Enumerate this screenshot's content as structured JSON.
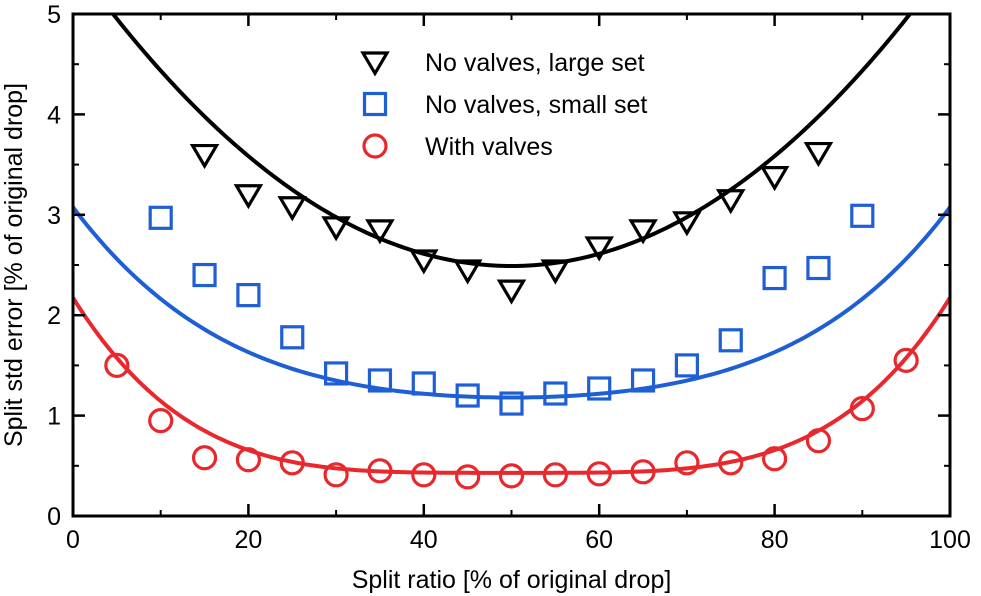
{
  "chart_data": {
    "type": "scatter",
    "title": "",
    "xlabel": "Split ratio [% of original drop]",
    "ylabel": "Split std error [% of original drop]",
    "xlim": [
      0,
      100
    ],
    "ylim": [
      0,
      5
    ],
    "xticks": [
      0,
      20,
      40,
      60,
      80,
      100
    ],
    "yticks": [
      0,
      1,
      2,
      3,
      4,
      5
    ],
    "grid": false,
    "legend_position": "top-center",
    "series": [
      {
        "name": "No valves, large set",
        "marker": "triangle-down",
        "color": "#000000",
        "x": [
          15,
          20,
          25,
          30,
          35,
          40,
          45,
          50,
          55,
          60,
          65,
          70,
          75,
          80,
          85
        ],
        "y": [
          3.6,
          3.2,
          3.08,
          2.88,
          2.85,
          2.55,
          2.45,
          2.25,
          2.45,
          2.68,
          2.85,
          2.93,
          3.15,
          3.38,
          3.62
        ],
        "fit": {
          "a": 2.49,
          "b": 0.001216,
          "c": 0.0
        }
      },
      {
        "name": "No valves, small set",
        "marker": "square",
        "color": "#1f5fd6",
        "x": [
          10,
          15,
          20,
          25,
          30,
          35,
          40,
          45,
          50,
          55,
          60,
          65,
          70,
          75,
          80,
          85,
          90
        ],
        "y": [
          2.97,
          2.4,
          2.2,
          1.78,
          1.42,
          1.35,
          1.32,
          1.2,
          1.12,
          1.22,
          1.27,
          1.35,
          1.5,
          1.75,
          2.37,
          2.47,
          2.99
        ],
        "fit": {
          "a": 1.18,
          "b": 0.000358,
          "c": 1.6e-07
        }
      },
      {
        "name": "With valves",
        "marker": "circle",
        "color": "#e8282d",
        "x": [
          5,
          10,
          15,
          20,
          25,
          30,
          35,
          40,
          45,
          50,
          55,
          60,
          65,
          70,
          75,
          80,
          85,
          90,
          95
        ],
        "y": [
          1.5,
          0.95,
          0.58,
          0.56,
          0.53,
          0.41,
          0.45,
          0.41,
          0.39,
          0.4,
          0.41,
          0.42,
          0.44,
          0.53,
          0.53,
          0.57,
          0.75,
          1.07,
          1.55
        ],
        "fit": {
          "a": 0.43,
          "b": 0.0,
          "c": 2.79e-07
        }
      }
    ]
  }
}
